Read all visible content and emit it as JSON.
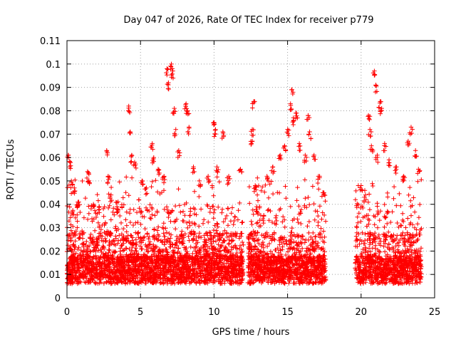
{
  "chart_data": {
    "type": "scatter",
    "title": "Day 047 of 2026, Rate Of TEC Index for receiver p779",
    "xlabel": "GPS time / hours",
    "ylabel": "ROTI / TECUs",
    "xlim": [
      0,
      25
    ],
    "ylim": [
      0,
      0.11
    ],
    "xticks": [
      "0",
      "5",
      "10",
      "15",
      "20",
      "25"
    ],
    "yticks": [
      "0",
      "0.01",
      "0.02",
      "0.03",
      "0.04",
      "0.05",
      "0.06",
      "0.07",
      "0.08",
      "0.09",
      "0.1",
      "0.11"
    ],
    "grid": true,
    "marker": "plus",
    "color": "#ff0000",
    "coverage_segments": [
      [
        0,
        12.0
      ],
      [
        12.3,
        17.6
      ],
      [
        19.6,
        24.1
      ]
    ],
    "series": [
      {
        "points": [
          [
            0.1,
            0.061
          ],
          [
            0.2,
            0.058
          ],
          [
            0.3,
            0.05
          ],
          [
            0.5,
            0.047
          ],
          [
            0.8,
            0.041
          ],
          [
            1.4,
            0.054
          ],
          [
            1.5,
            0.05
          ],
          [
            1.8,
            0.04
          ],
          [
            2.2,
            0.039
          ],
          [
            2.7,
            0.063
          ],
          [
            2.8,
            0.052
          ],
          [
            3.0,
            0.044
          ],
          [
            3.4,
            0.038
          ],
          [
            4.2,
            0.082
          ],
          [
            4.3,
            0.071
          ],
          [
            4.4,
            0.061
          ],
          [
            4.6,
            0.058
          ],
          [
            5.1,
            0.05
          ],
          [
            5.4,
            0.047
          ],
          [
            5.8,
            0.066
          ],
          [
            5.9,
            0.06
          ],
          [
            6.2,
            0.055
          ],
          [
            6.6,
            0.052
          ],
          [
            6.8,
            0.098
          ],
          [
            6.9,
            0.092
          ],
          [
            7.1,
            0.1
          ],
          [
            7.2,
            0.097
          ],
          [
            7.3,
            0.081
          ],
          [
            7.4,
            0.072
          ],
          [
            7.6,
            0.063
          ],
          [
            8.1,
            0.083
          ],
          [
            8.2,
            0.08
          ],
          [
            8.3,
            0.073
          ],
          [
            8.6,
            0.056
          ],
          [
            9.0,
            0.05
          ],
          [
            9.6,
            0.052
          ],
          [
            10.0,
            0.075
          ],
          [
            10.1,
            0.072
          ],
          [
            10.6,
            0.071
          ],
          [
            10.2,
            0.056
          ],
          [
            11.0,
            0.052
          ],
          [
            11.8,
            0.055
          ],
          [
            12.7,
            0.084
          ],
          [
            12.6,
            0.072
          ],
          [
            12.6,
            0.067
          ],
          [
            12.8,
            0.048
          ],
          [
            13.6,
            0.052
          ],
          [
            14.0,
            0.056
          ],
          [
            14.5,
            0.061
          ],
          [
            14.8,
            0.065
          ],
          [
            15.0,
            0.072
          ],
          [
            15.2,
            0.083
          ],
          [
            15.3,
            0.089
          ],
          [
            15.4,
            0.077
          ],
          [
            15.6,
            0.079
          ],
          [
            15.8,
            0.066
          ],
          [
            16.2,
            0.061
          ],
          [
            16.4,
            0.078
          ],
          [
            16.5,
            0.071
          ],
          [
            16.8,
            0.061
          ],
          [
            17.1,
            0.052
          ],
          [
            17.4,
            0.045
          ],
          [
            20.0,
            0.048
          ],
          [
            20.3,
            0.044
          ],
          [
            20.5,
            0.078
          ],
          [
            20.6,
            0.072
          ],
          [
            20.7,
            0.065
          ],
          [
            20.9,
            0.097
          ],
          [
            21.0,
            0.091
          ],
          [
            21.1,
            0.061
          ],
          [
            21.3,
            0.084
          ],
          [
            21.4,
            0.081
          ],
          [
            21.6,
            0.066
          ],
          [
            21.9,
            0.059
          ],
          [
            22.4,
            0.056
          ],
          [
            22.9,
            0.052
          ],
          [
            23.2,
            0.067
          ],
          [
            23.4,
            0.073
          ],
          [
            23.7,
            0.063
          ],
          [
            23.9,
            0.055
          ]
        ]
      }
    ]
  }
}
